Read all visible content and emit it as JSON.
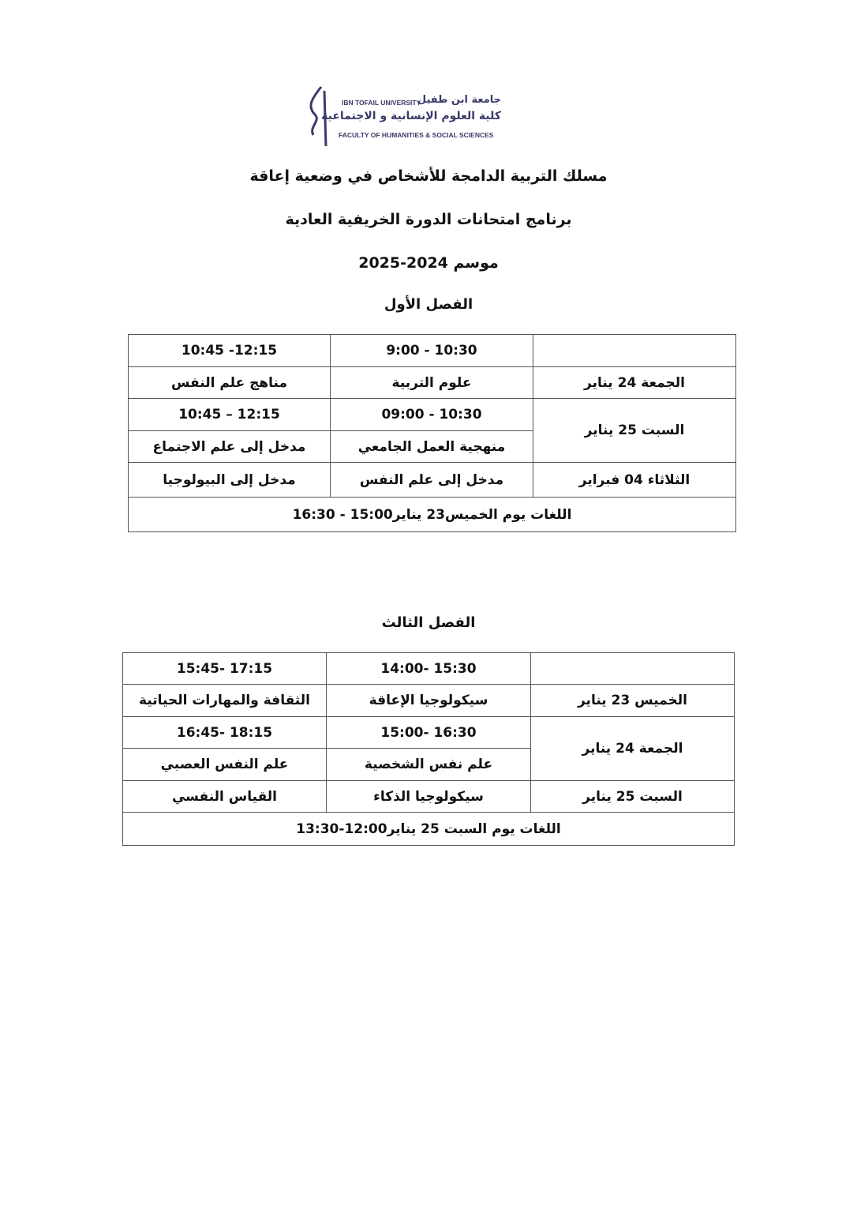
{
  "logo": {
    "en_university": "IBN TOFAIL UNIVERSITY",
    "ar_university": "جامعة ابن طفيل",
    "ar_faculty": "كلية العلوم الإنسانية و الاجتماعية",
    "en_faculty": "FACULTY OF HUMANITIES & SOCIAL SCIENCES"
  },
  "header": {
    "program": "مسلك التربية الدامجة للأشخاص في وضعية إعاقة",
    "schedule": "برنامج امتحانات الدورة الخريفية العادية",
    "season": "موسم 2024-2025"
  },
  "semester1": {
    "title": "الفصل الأول",
    "times_row1": [
      "9:00 - 10:30",
      "10:45 -12:15"
    ],
    "rows": [
      {
        "day": "الجمعة 24 يناير",
        "subjects": [
          "علوم التربية",
          "مناهج علم النفس"
        ]
      },
      {
        "day": "السبت 25 يناير",
        "times": [
          "09:00 - 10:30",
          "10:45 – 12:15"
        ],
        "subjects": [
          "منهجية العمل الجامعي",
          "مدخل إلى علم الاجتماع"
        ]
      },
      {
        "day": "الثلاثاء 04 فبراير",
        "subjects": [
          "مدخل إلى علم النفس",
          "مدخل إلى البيولوجيا"
        ]
      }
    ],
    "languages": "اللغات يوم الخميس23 يناير15:00 - 16:30"
  },
  "semester3": {
    "title": "الفصل الثالث",
    "times_row1": [
      "14:00- 15:30",
      "15:45- 17:15"
    ],
    "rows": [
      {
        "day": "الخميس 23 يناير",
        "subjects": [
          "سيكولوجيا الإعاقة",
          "الثقافة والمهارات الحياتية"
        ]
      },
      {
        "day": "الجمعة 24 يناير",
        "times": [
          "15:00- 16:30",
          "16:45- 18:15"
        ],
        "subjects": [
          "علم نفس الشخصية",
          "علم النفس العصبي"
        ]
      },
      {
        "day": "السبت 25 يناير",
        "subjects": [
          "سيكولوجيا الذكاء",
          "القياس النفسي"
        ]
      }
    ],
    "languages": "اللغات يوم السبت 25 يناير12:00-13:30"
  }
}
